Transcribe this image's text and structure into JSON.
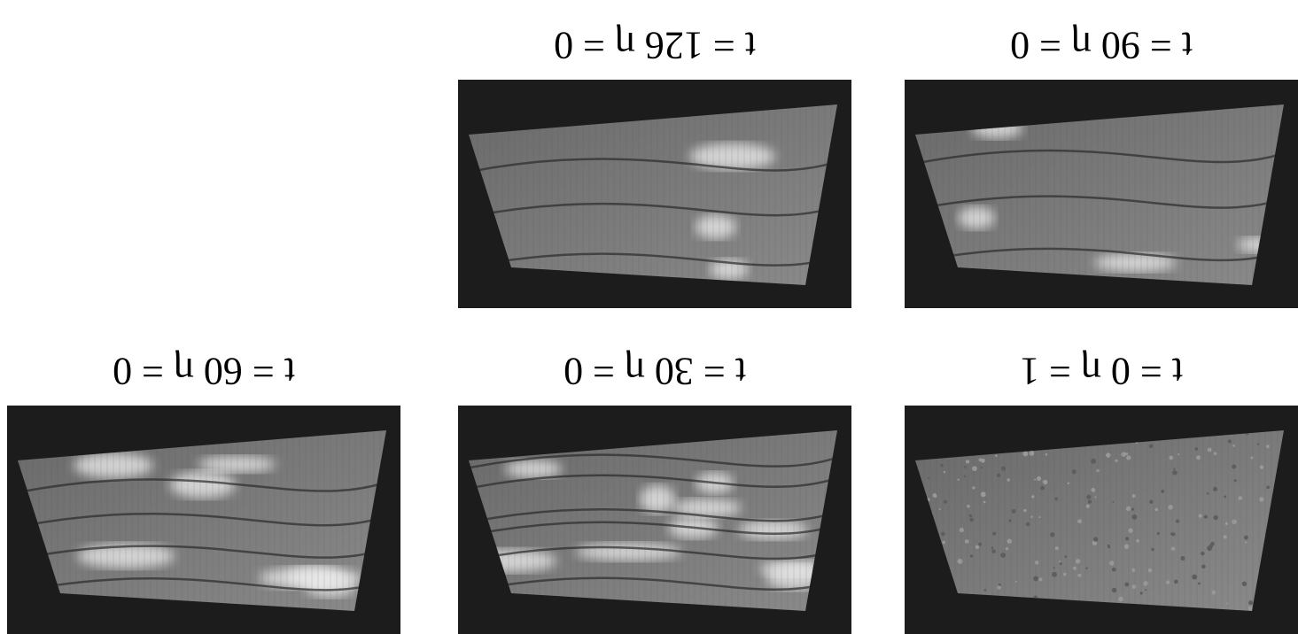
{
  "panels": [
    {
      "label": "t = 0 η = 1"
    },
    {
      "label": "t = 30 η = 0"
    },
    {
      "label": "t = 60 η = 0"
    },
    {
      "label": "t = 90 η = 0"
    },
    {
      "label": "t = 126 η = 0"
    }
  ]
}
